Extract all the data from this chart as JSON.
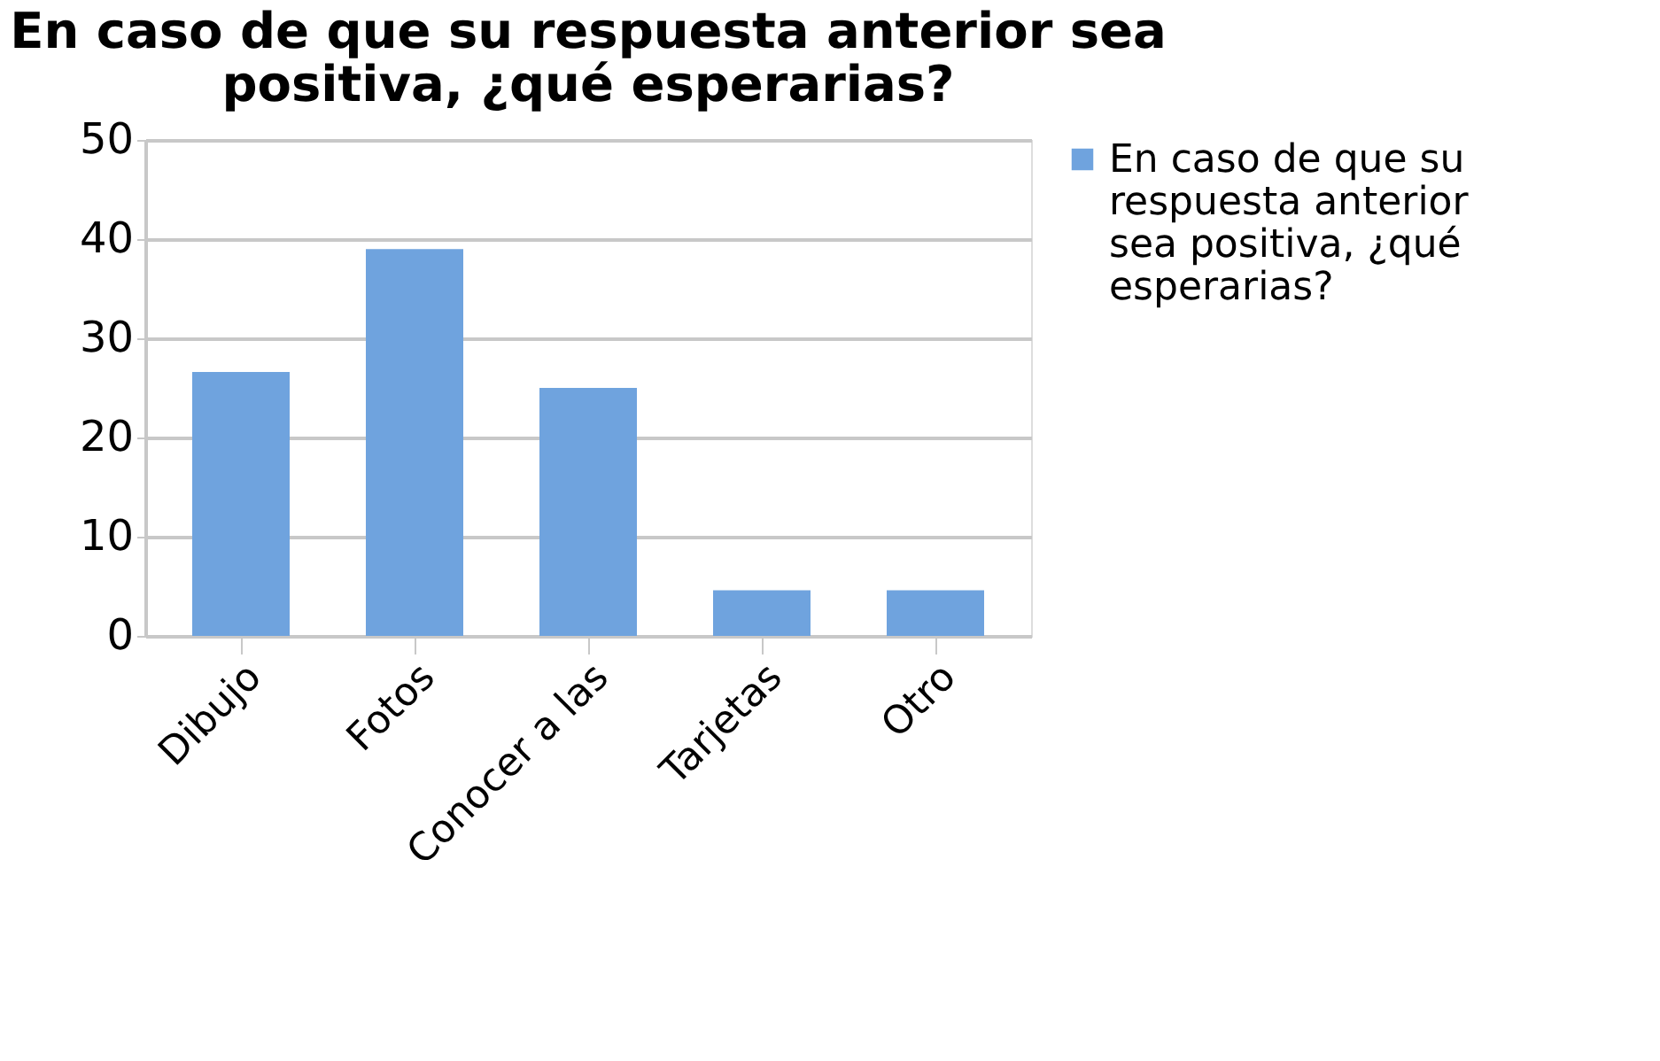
{
  "chart_data": {
    "type": "bar",
    "title": [
      "En caso de que su respuesta anterior sea",
      "positiva, ¿qué esperarias?"
    ],
    "categories": [
      "Dibujo",
      "Fotos",
      "Conocer a las",
      "Tarjetas",
      "Otro"
    ],
    "series": [
      {
        "name": "En caso de que su respuesta anterior sea positiva, ¿qué esperarias?",
        "color": "#6fa3de",
        "values": [
          26.6,
          39,
          25,
          4.6,
          4.6
        ]
      }
    ],
    "ylim": [
      0,
      50
    ],
    "yticks": [
      0,
      10,
      20,
      30,
      40,
      50
    ],
    "grid": "y",
    "legend": "right"
  }
}
